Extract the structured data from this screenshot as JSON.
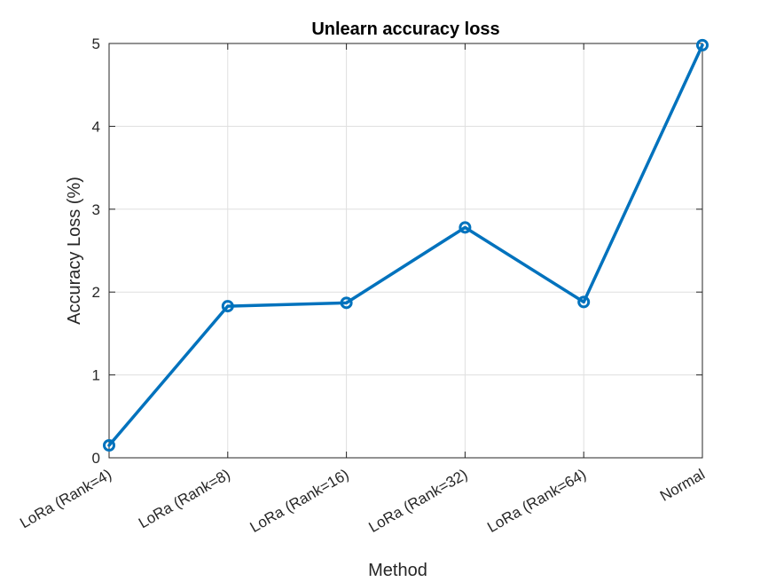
{
  "chart_data": {
    "type": "line",
    "title": "Unlearn accuracy loss",
    "xlabel": "Method",
    "ylabel": "Accuracy Loss (%)",
    "categories": [
      "LoRa (Rank=4)",
      "LoRa (Rank=8)",
      "LoRa (Rank=16)",
      "LoRa (Rank=32)",
      "LoRa (Rank=64)",
      "Normal"
    ],
    "series": [
      {
        "values": [
          0.15,
          1.83,
          1.87,
          2.78,
          1.88,
          4.98
        ],
        "color": "#0072BD",
        "marker": "circle"
      }
    ],
    "ylim": [
      0,
      5
    ],
    "yticks": [
      "0",
      "1",
      "2",
      "3",
      "4",
      "5"
    ],
    "grid": true
  }
}
